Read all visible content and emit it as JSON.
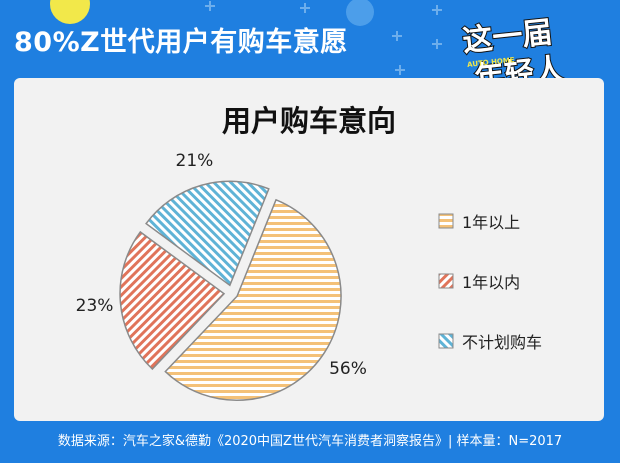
{
  "header": {
    "title": "80%Z世代用户有购车意愿"
  },
  "logo": {
    "line1": "这一届",
    "line2": "年轻人",
    "badge": "AUTO HOME"
  },
  "colors": {
    "background": "#1f7fe0",
    "card": "#f2f2f2",
    "orange": "#f4c178",
    "red": "#e0745a",
    "blue": "#5fb3d6"
  },
  "chart_data": {
    "type": "pie",
    "title": "用户购车意向",
    "slices": [
      {
        "label": "1年以上",
        "value": 56,
        "display": "56%"
      },
      {
        "label": "1年以内",
        "value": 23,
        "display": "23%"
      },
      {
        "label": "不计划购车",
        "value": 21,
        "display": "21%"
      }
    ],
    "legend_position": "right"
  },
  "footer": {
    "source": "数据来源：汽车之家&德勤《2020中国Z世代汽车消费者洞察报告》| 样本量：N=2017"
  }
}
